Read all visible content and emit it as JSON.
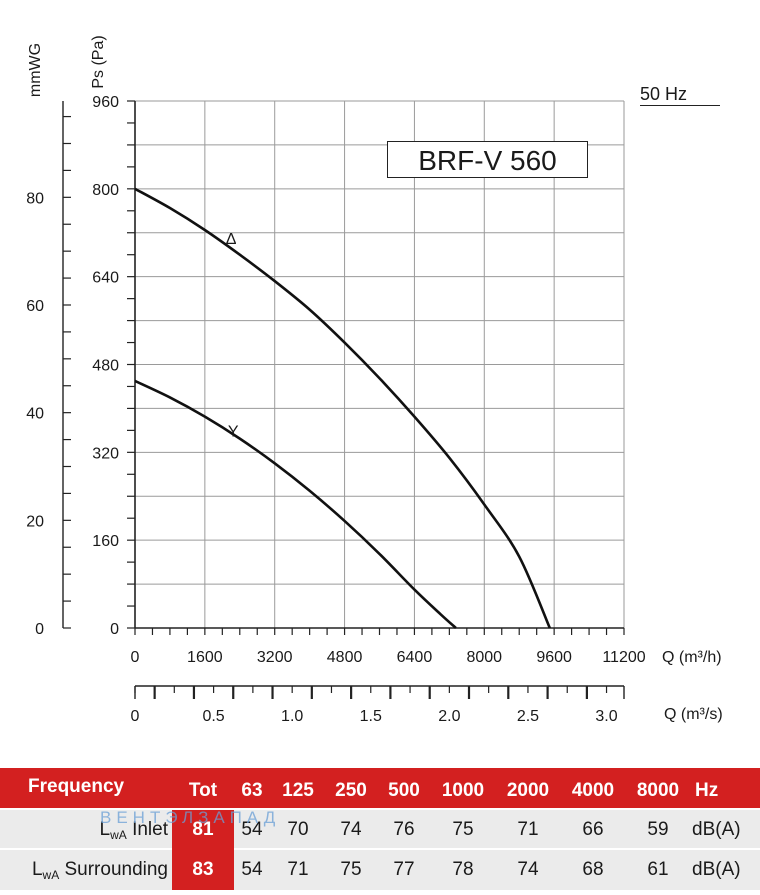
{
  "chart_data": {
    "type": "line",
    "title": "BRF-V 560",
    "frequency_label": "50 Hz",
    "y_left_outer_label": "mmWG",
    "y_left_inner_label": "Ps (Pa)",
    "xlabel": "Q (m³/h)",
    "x2label": "Q (m³/s)",
    "xlim": [
      0,
      11200
    ],
    "ylim": [
      0,
      960
    ],
    "x_ticks": [
      "0",
      "1600",
      "3200",
      "4800",
      "6400",
      "8000",
      "9600",
      "11200"
    ],
    "y_ticks": [
      "0",
      "160",
      "320",
      "480",
      "640",
      "800",
      "960"
    ],
    "mmwg_ticks": [
      "0",
      "20",
      "40",
      "60",
      "80"
    ],
    "x2_ticks": [
      "0",
      "0.5",
      "1.0",
      "1.5",
      "2.0",
      "2.5",
      "3.0"
    ],
    "grid": true,
    "series": [
      {
        "name": "Δ",
        "x": [
          0,
          800,
          1600,
          2400,
          3200,
          4000,
          4800,
          5600,
          6400,
          7200,
          8000,
          8800,
          9500
        ],
        "y": [
          800,
          765,
          725,
          680,
          632,
          580,
          520,
          455,
          385,
          310,
          225,
          130,
          0
        ]
      },
      {
        "name": "Y",
        "x": [
          0,
          800,
          1600,
          2400,
          3200,
          4000,
          4800,
          5600,
          6400,
          7000,
          7350
        ],
        "y": [
          450,
          420,
          385,
          345,
          300,
          250,
          195,
          135,
          70,
          25,
          0
        ]
      }
    ]
  },
  "sound_table": {
    "header": [
      "Frequency",
      "Tot",
      "63",
      "125",
      "250",
      "500",
      "1000",
      "2000",
      "4000",
      "8000",
      "Hz"
    ],
    "rows": [
      {
        "label_main": "L",
        "label_sub": "wA",
        "label_rest": " Inlet",
        "values": [
          "81",
          "54",
          "70",
          "74",
          "76",
          "75",
          "71",
          "66",
          "59"
        ],
        "unit": "dB(A)"
      },
      {
        "label_main": "L",
        "label_sub": "wA",
        "label_rest": " Surrounding",
        "values": [
          "83",
          "54",
          "71",
          "75",
          "77",
          "78",
          "74",
          "68",
          "61"
        ],
        "unit": "dB(A)"
      }
    ],
    "watermark": "ВЕНТЭЛЗАПАД"
  }
}
